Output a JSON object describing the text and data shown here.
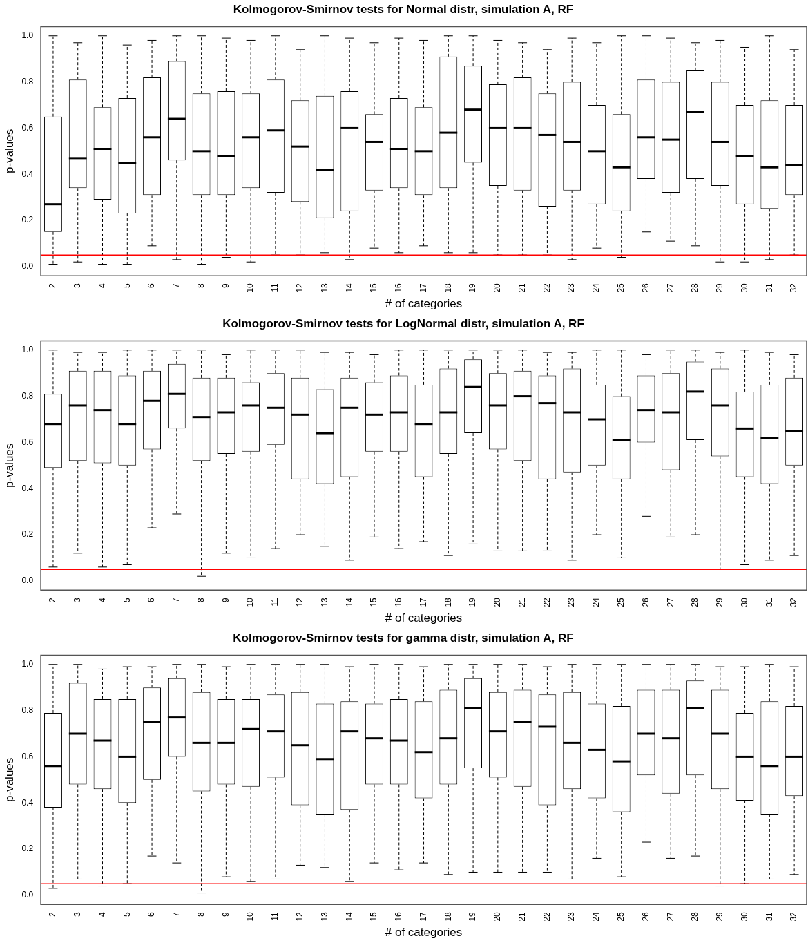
{
  "chart_data": [
    {
      "type": "box",
      "title": "Kolmogorov-Smirnov tests for Normal distr, simulation A, RF",
      "xlabel": "# of categories",
      "ylabel": "p-values",
      "grid": false,
      "categories": [
        "2",
        "3",
        "4",
        "5",
        "6",
        "7",
        "8",
        "9",
        "10",
        "11",
        "12",
        "13",
        "14",
        "15",
        "16",
        "17",
        "18",
        "19",
        "20",
        "21",
        "22",
        "23",
        "24",
        "25",
        "26",
        "27",
        "28",
        "29",
        "30",
        "31",
        "32"
      ],
      "ylim": [
        -0.04,
        1.04
      ],
      "yticks": [
        {
          "value": 0,
          "label": "0.0"
        },
        {
          "value": 0.2,
          "label": "0.2"
        },
        {
          "value": 0.4,
          "label": "0.4"
        },
        {
          "value": 0.6,
          "label": "0.6"
        },
        {
          "value": 0.8,
          "label": "0.8"
        },
        {
          "value": 1,
          "label": "1.0"
        }
      ],
      "ref_lines": [
        {
          "axis": "y",
          "value": 0.05,
          "color": "#ff0000"
        }
      ],
      "boxes": [
        {
          "low": 0.01,
          "q1": 0.15,
          "median": 0.27,
          "q3": 0.65,
          "high": 1.0
        },
        {
          "low": 0.02,
          "q1": 0.34,
          "median": 0.47,
          "q3": 0.81,
          "high": 0.97
        },
        {
          "low": 0.01,
          "q1": 0.29,
          "median": 0.51,
          "q3": 0.69,
          "high": 1.0
        },
        {
          "low": 0.01,
          "q1": 0.23,
          "median": 0.45,
          "q3": 0.73,
          "high": 0.96
        },
        {
          "low": 0.09,
          "q1": 0.31,
          "median": 0.56,
          "q3": 0.82,
          "high": 0.98
        },
        {
          "low": 0.03,
          "q1": 0.46,
          "median": 0.64,
          "q3": 0.89,
          "high": 1.0
        },
        {
          "low": 0.01,
          "q1": 0.31,
          "median": 0.5,
          "q3": 0.75,
          "high": 1.0
        },
        {
          "low": 0.04,
          "q1": 0.31,
          "median": 0.48,
          "q3": 0.76,
          "high": 0.99
        },
        {
          "low": 0.02,
          "q1": 0.34,
          "median": 0.56,
          "q3": 0.75,
          "high": 0.98
        },
        {
          "low": 0.05,
          "q1": 0.32,
          "median": 0.59,
          "q3": 0.81,
          "high": 1.0
        },
        {
          "low": 0.05,
          "q1": 0.28,
          "median": 0.52,
          "q3": 0.72,
          "high": 0.94
        },
        {
          "low": 0.06,
          "q1": 0.21,
          "median": 0.42,
          "q3": 0.74,
          "high": 1.0
        },
        {
          "low": 0.03,
          "q1": 0.24,
          "median": 0.6,
          "q3": 0.76,
          "high": 0.99
        },
        {
          "low": 0.08,
          "q1": 0.33,
          "median": 0.54,
          "q3": 0.66,
          "high": 0.97
        },
        {
          "low": 0.06,
          "q1": 0.34,
          "median": 0.51,
          "q3": 0.73,
          "high": 0.99
        },
        {
          "low": 0.09,
          "q1": 0.31,
          "median": 0.5,
          "q3": 0.69,
          "high": 0.98
        },
        {
          "low": 0.06,
          "q1": 0.34,
          "median": 0.58,
          "q3": 0.91,
          "high": 1.0
        },
        {
          "low": 0.06,
          "q1": 0.45,
          "median": 0.68,
          "q3": 0.87,
          "high": 1.0
        },
        {
          "low": 0.05,
          "q1": 0.35,
          "median": 0.6,
          "q3": 0.79,
          "high": 0.98
        },
        {
          "low": 0.05,
          "q1": 0.33,
          "median": 0.6,
          "q3": 0.82,
          "high": 0.97
        },
        {
          "low": 0.05,
          "q1": 0.26,
          "median": 0.57,
          "q3": 0.75,
          "high": 0.94
        },
        {
          "low": 0.03,
          "q1": 0.33,
          "median": 0.54,
          "q3": 0.8,
          "high": 0.99
        },
        {
          "low": 0.08,
          "q1": 0.27,
          "median": 0.5,
          "q3": 0.7,
          "high": 0.97
        },
        {
          "low": 0.04,
          "q1": 0.24,
          "median": 0.43,
          "q3": 0.66,
          "high": 1.0
        },
        {
          "low": 0.15,
          "q1": 0.38,
          "median": 0.56,
          "q3": 0.81,
          "high": 1.0
        },
        {
          "low": 0.11,
          "q1": 0.32,
          "median": 0.55,
          "q3": 0.8,
          "high": 0.99
        },
        {
          "low": 0.09,
          "q1": 0.38,
          "median": 0.67,
          "q3": 0.85,
          "high": 0.97
        },
        {
          "low": 0.02,
          "q1": 0.35,
          "median": 0.54,
          "q3": 0.8,
          "high": 0.98
        },
        {
          "low": 0.02,
          "q1": 0.27,
          "median": 0.48,
          "q3": 0.7,
          "high": 0.95
        },
        {
          "low": 0.03,
          "q1": 0.25,
          "median": 0.43,
          "q3": 0.72,
          "high": 1.0
        },
        {
          "low": 0.05,
          "q1": 0.31,
          "median": 0.44,
          "q3": 0.7,
          "high": 0.94
        }
      ]
    },
    {
      "type": "box",
      "title": "Kolmogorov-Smirnov tests for LogNormal distr, simulation A, RF",
      "xlabel": "# of categories",
      "ylabel": "p-values",
      "grid": false,
      "categories": [
        "2",
        "3",
        "4",
        "5",
        "6",
        "7",
        "8",
        "9",
        "10",
        "11",
        "12",
        "13",
        "14",
        "15",
        "16",
        "17",
        "18",
        "19",
        "20",
        "21",
        "22",
        "23",
        "24",
        "25",
        "26",
        "27",
        "28",
        "29",
        "30",
        "31",
        "32"
      ],
      "ylim": [
        -0.04,
        1.04
      ],
      "yticks": [
        {
          "value": 0,
          "label": "0.0"
        },
        {
          "value": 0.2,
          "label": "0.2"
        },
        {
          "value": 0.4,
          "label": "0.4"
        },
        {
          "value": 0.6,
          "label": "0.6"
        },
        {
          "value": 0.8,
          "label": "0.8"
        },
        {
          "value": 1,
          "label": "1.0"
        }
      ],
      "ref_lines": [
        {
          "axis": "y",
          "value": 0.05,
          "color": "#ff0000"
        }
      ],
      "boxes": [
        {
          "low": 0.06,
          "q1": 0.49,
          "median": 0.68,
          "q3": 0.81,
          "high": 1.0
        },
        {
          "low": 0.12,
          "q1": 0.52,
          "median": 0.76,
          "q3": 0.91,
          "high": 0.99
        },
        {
          "low": 0.06,
          "q1": 0.51,
          "median": 0.74,
          "q3": 0.91,
          "high": 0.99
        },
        {
          "low": 0.07,
          "q1": 0.5,
          "median": 0.68,
          "q3": 0.89,
          "high": 1.0
        },
        {
          "low": 0.23,
          "q1": 0.57,
          "median": 0.78,
          "q3": 0.91,
          "high": 1.0
        },
        {
          "low": 0.29,
          "q1": 0.66,
          "median": 0.81,
          "q3": 0.94,
          "high": 1.0
        },
        {
          "low": 0.02,
          "q1": 0.52,
          "median": 0.71,
          "q3": 0.88,
          "high": 1.0
        },
        {
          "low": 0.12,
          "q1": 0.55,
          "median": 0.73,
          "q3": 0.88,
          "high": 0.98
        },
        {
          "low": 0.1,
          "q1": 0.56,
          "median": 0.76,
          "q3": 0.86,
          "high": 1.0
        },
        {
          "low": 0.14,
          "q1": 0.59,
          "median": 0.75,
          "q3": 0.9,
          "high": 1.0
        },
        {
          "low": 0.2,
          "q1": 0.44,
          "median": 0.72,
          "q3": 0.88,
          "high": 1.0
        },
        {
          "low": 0.15,
          "q1": 0.42,
          "median": 0.64,
          "q3": 0.83,
          "high": 0.99
        },
        {
          "low": 0.09,
          "q1": 0.45,
          "median": 0.75,
          "q3": 0.88,
          "high": 0.99
        },
        {
          "low": 0.19,
          "q1": 0.56,
          "median": 0.72,
          "q3": 0.86,
          "high": 0.98
        },
        {
          "low": 0.14,
          "q1": 0.56,
          "median": 0.73,
          "q3": 0.89,
          "high": 1.0
        },
        {
          "low": 0.17,
          "q1": 0.45,
          "median": 0.68,
          "q3": 0.85,
          "high": 1.0
        },
        {
          "low": 0.11,
          "q1": 0.55,
          "median": 0.73,
          "q3": 0.92,
          "high": 1.0
        },
        {
          "low": 0.16,
          "q1": 0.64,
          "median": 0.84,
          "q3": 0.96,
          "high": 1.0
        },
        {
          "low": 0.13,
          "q1": 0.57,
          "median": 0.76,
          "q3": 0.9,
          "high": 1.0
        },
        {
          "low": 0.13,
          "q1": 0.52,
          "median": 0.8,
          "q3": 0.91,
          "high": 1.0
        },
        {
          "low": 0.13,
          "q1": 0.44,
          "median": 0.77,
          "q3": 0.89,
          "high": 0.99
        },
        {
          "low": 0.09,
          "q1": 0.47,
          "median": 0.73,
          "q3": 0.92,
          "high": 0.99
        },
        {
          "low": 0.2,
          "q1": 0.5,
          "median": 0.7,
          "q3": 0.85,
          "high": 1.0
        },
        {
          "low": 0.1,
          "q1": 0.44,
          "median": 0.61,
          "q3": 0.8,
          "high": 1.0
        },
        {
          "low": 0.28,
          "q1": 0.6,
          "median": 0.74,
          "q3": 0.89,
          "high": 0.98
        },
        {
          "low": 0.19,
          "q1": 0.48,
          "median": 0.73,
          "q3": 0.9,
          "high": 1.0
        },
        {
          "low": 0.2,
          "q1": 0.61,
          "median": 0.82,
          "q3": 0.95,
          "high": 1.0
        },
        {
          "low": 0.05,
          "q1": 0.54,
          "median": 0.76,
          "q3": 0.92,
          "high": 0.99
        },
        {
          "low": 0.07,
          "q1": 0.45,
          "median": 0.66,
          "q3": 0.82,
          "high": 1.0
        },
        {
          "low": 0.09,
          "q1": 0.42,
          "median": 0.62,
          "q3": 0.85,
          "high": 0.99
        },
        {
          "low": 0.11,
          "q1": 0.5,
          "median": 0.65,
          "q3": 0.88,
          "high": 0.98
        }
      ]
    },
    {
      "type": "box",
      "title": "Kolmogorov-Smirnov tests for gamma distr, simulation A, RF",
      "xlabel": "# of categories",
      "ylabel": "p-values",
      "grid": false,
      "categories": [
        "2",
        "3",
        "4",
        "5",
        "6",
        "7",
        "8",
        "9",
        "10",
        "11",
        "12",
        "13",
        "14",
        "15",
        "16",
        "17",
        "18",
        "19",
        "20",
        "21",
        "22",
        "23",
        "24",
        "25",
        "26",
        "27",
        "28",
        "29",
        "30",
        "31",
        "32"
      ],
      "ylim": [
        -0.04,
        1.04
      ],
      "yticks": [
        {
          "value": 0,
          "label": "0.0"
        },
        {
          "value": 0.2,
          "label": "0.2"
        },
        {
          "value": 0.4,
          "label": "0.4"
        },
        {
          "value": 0.6,
          "label": "0.6"
        },
        {
          "value": 0.8,
          "label": "0.8"
        },
        {
          "value": 1,
          "label": "1.0"
        }
      ],
      "ref_lines": [
        {
          "axis": "y",
          "value": 0.05,
          "color": "#ff0000"
        }
      ],
      "boxes": [
        {
          "low": 0.03,
          "q1": 0.38,
          "median": 0.56,
          "q3": 0.79,
          "high": 1.0
        },
        {
          "low": 0.07,
          "q1": 0.48,
          "median": 0.7,
          "q3": 0.92,
          "high": 1.0
        },
        {
          "low": 0.04,
          "q1": 0.46,
          "median": 0.67,
          "q3": 0.85,
          "high": 0.98
        },
        {
          "low": 0.05,
          "q1": 0.4,
          "median": 0.6,
          "q3": 0.85,
          "high": 0.99
        },
        {
          "low": 0.17,
          "q1": 0.5,
          "median": 0.75,
          "q3": 0.9,
          "high": 0.99
        },
        {
          "low": 0.14,
          "q1": 0.6,
          "median": 0.77,
          "q3": 0.94,
          "high": 1.0
        },
        {
          "low": 0.01,
          "q1": 0.45,
          "median": 0.66,
          "q3": 0.88,
          "high": 1.0
        },
        {
          "low": 0.08,
          "q1": 0.48,
          "median": 0.66,
          "q3": 0.85,
          "high": 0.99
        },
        {
          "low": 0.06,
          "q1": 0.47,
          "median": 0.72,
          "q3": 0.85,
          "high": 1.0
        },
        {
          "low": 0.07,
          "q1": 0.51,
          "median": 0.71,
          "q3": 0.87,
          "high": 1.0
        },
        {
          "low": 0.13,
          "q1": 0.39,
          "median": 0.65,
          "q3": 0.88,
          "high": 1.0
        },
        {
          "low": 0.12,
          "q1": 0.35,
          "median": 0.59,
          "q3": 0.83,
          "high": 1.0
        },
        {
          "low": 0.06,
          "q1": 0.37,
          "median": 0.71,
          "q3": 0.84,
          "high": 0.99
        },
        {
          "low": 0.14,
          "q1": 0.48,
          "median": 0.68,
          "q3": 0.83,
          "high": 1.0
        },
        {
          "low": 0.11,
          "q1": 0.48,
          "median": 0.67,
          "q3": 0.85,
          "high": 1.0
        },
        {
          "low": 0.14,
          "q1": 0.42,
          "median": 0.62,
          "q3": 0.84,
          "high": 0.99
        },
        {
          "low": 0.09,
          "q1": 0.48,
          "median": 0.68,
          "q3": 0.89,
          "high": 1.0
        },
        {
          "low": 0.1,
          "q1": 0.55,
          "median": 0.81,
          "q3": 0.94,
          "high": 1.0
        },
        {
          "low": 0.1,
          "q1": 0.51,
          "median": 0.71,
          "q3": 0.88,
          "high": 1.0
        },
        {
          "low": 0.1,
          "q1": 0.47,
          "median": 0.75,
          "q3": 0.89,
          "high": 1.0
        },
        {
          "low": 0.1,
          "q1": 0.39,
          "median": 0.73,
          "q3": 0.87,
          "high": 0.99
        },
        {
          "low": 0.07,
          "q1": 0.46,
          "median": 0.66,
          "q3": 0.88,
          "high": 1.0
        },
        {
          "low": 0.16,
          "q1": 0.42,
          "median": 0.63,
          "q3": 0.83,
          "high": 1.0
        },
        {
          "low": 0.08,
          "q1": 0.36,
          "median": 0.58,
          "q3": 0.82,
          "high": 1.0
        },
        {
          "low": 0.23,
          "q1": 0.52,
          "median": 0.7,
          "q3": 0.89,
          "high": 1.0
        },
        {
          "low": 0.16,
          "q1": 0.44,
          "median": 0.68,
          "q3": 0.89,
          "high": 1.0
        },
        {
          "low": 0.17,
          "q1": 0.52,
          "median": 0.81,
          "q3": 0.93,
          "high": 1.0
        },
        {
          "low": 0.04,
          "q1": 0.46,
          "median": 0.7,
          "q3": 0.89,
          "high": 0.99
        },
        {
          "low": 0.05,
          "q1": 0.41,
          "median": 0.6,
          "q3": 0.79,
          "high": 0.99
        },
        {
          "low": 0.07,
          "q1": 0.35,
          "median": 0.56,
          "q3": 0.84,
          "high": 1.0
        },
        {
          "low": 0.09,
          "q1": 0.43,
          "median": 0.6,
          "q3": 0.82,
          "high": 0.99
        }
      ]
    }
  ]
}
